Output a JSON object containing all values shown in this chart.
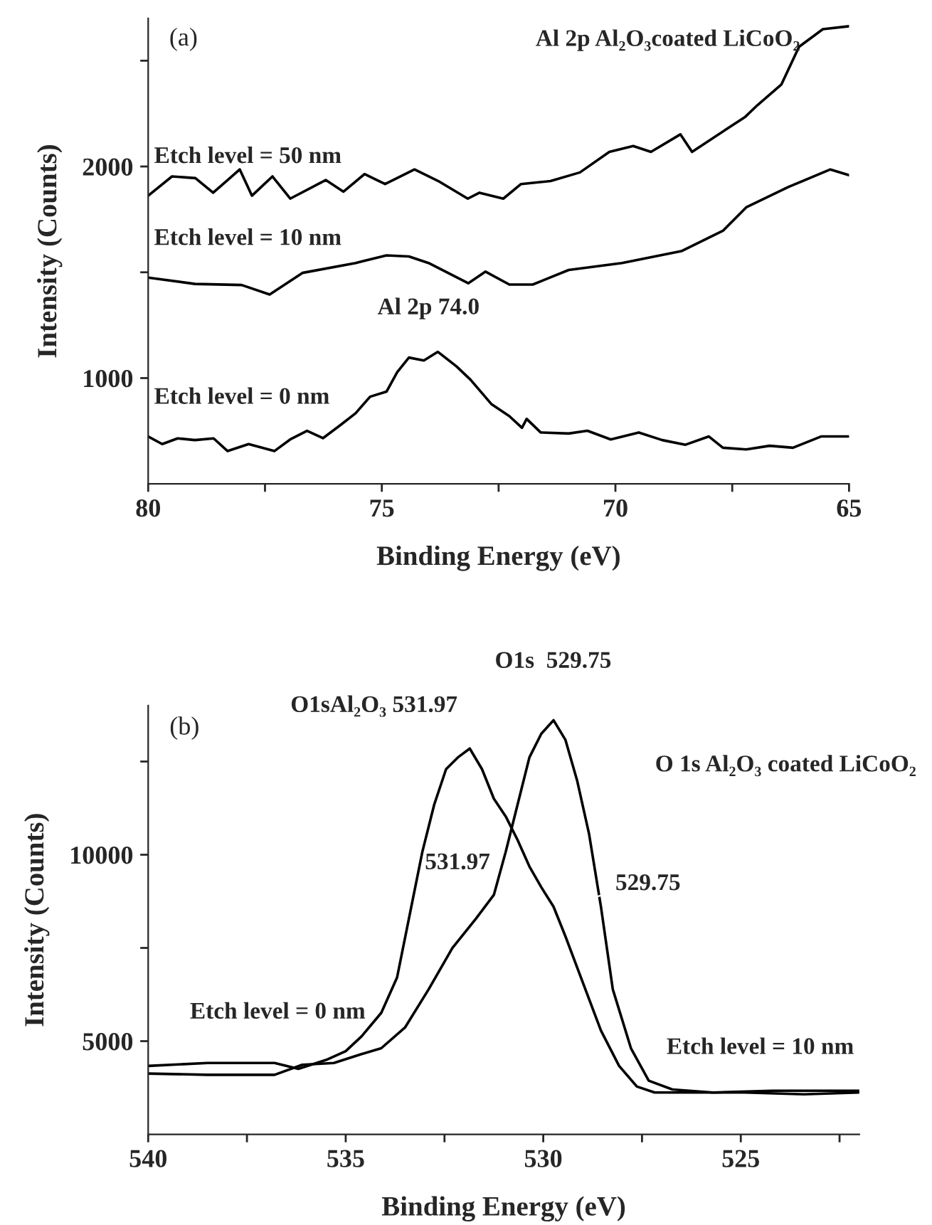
{
  "chart_data": [
    {
      "type": "line",
      "title": "Al 2p Al₂O₃coated LiCoO₂",
      "xlabel": "Binding Energy (eV)",
      "ylabel": "Intensity (Counts)",
      "xlim": [
        80,
        65
      ],
      "ylim": [
        500,
        2700
      ],
      "xticks": [
        80,
        {
          "value": 77.5,
          "label": null
        },
        75,
        {
          "value": 72.5,
          "label": null
        },
        70,
        {
          "value": 67.5,
          "label": null
        },
        65
      ],
      "yticks": [
        1000,
        {
          "value": 1500,
          "label": null
        },
        2000,
        {
          "value": 2500,
          "label": null
        }
      ],
      "annotations": [
        "(a)",
        {
          "text": "Al 2p 74.0",
          "x": 74.0,
          "y": 1110
        }
      ],
      "series": [
        {
          "name": "Etch level = 50 nm",
          "color": "#000000",
          "x": [
            80,
            79.49,
            78.99,
            78.61,
            78.04,
            77.78,
            77.34,
            76.96,
            76.2,
            75.82,
            75.37,
            74.93,
            74.3,
            73.79,
            73.16,
            72.91,
            72.4,
            72.02,
            71.39,
            70.76,
            70.13,
            69.62,
            69.24,
            68.61,
            68.36,
            67.6,
            67.22,
            66.96,
            66.45,
            66.07,
            65.56,
            65.0
          ],
          "values": [
            1862,
            1953,
            1945,
            1876,
            1986,
            1862,
            1953,
            1848,
            1936,
            1881,
            1964,
            1917,
            1986,
            1931,
            1848,
            1876,
            1848,
            1917,
            1931,
            1972,
            2069,
            2097,
            2069,
            2152,
            2069,
            2180,
            2235,
            2290,
            2387,
            2566,
            2649,
            2663
          ]
        },
        {
          "name": "Etch level = 10 nm",
          "color": "#000000",
          "x": [
            80,
            79.0,
            78.0,
            77.4,
            76.7,
            75.56,
            74.9,
            74.42,
            74.0,
            73.15,
            72.78,
            72.27,
            71.77,
            71.0,
            69.86,
            68.59,
            67.7,
            67.2,
            66.3,
            65.4,
            65.0
          ],
          "values": [
            1475,
            1445,
            1440,
            1395,
            1497,
            1544,
            1580,
            1575,
            1544,
            1448,
            1503,
            1442,
            1442,
            1511,
            1544,
            1600,
            1696,
            1807,
            1903,
            1986,
            1959
          ]
        },
        {
          "name": "Etch level = 0 nm",
          "color": "#000000",
          "x": [
            80,
            79.7,
            79.37,
            79.0,
            78.6,
            78.3,
            77.85,
            77.3,
            76.96,
            76.6,
            76.26,
            75.88,
            75.56,
            75.25,
            74.9,
            74.67,
            74.42,
            74.1,
            73.8,
            73.4,
            73.1,
            72.65,
            72.27,
            72.0,
            71.9,
            71.6,
            71.0,
            70.6,
            70.1,
            69.5,
            69.0,
            68.5,
            68.0,
            67.7,
            67.2,
            66.7,
            66.2,
            65.6,
            65.0
          ],
          "values": [
            724,
            688,
            715,
            707,
            715,
            655,
            688,
            655,
            710,
            751,
            716,
            779,
            834,
            912,
            936,
            1028,
            1097,
            1083,
            1124,
            1055,
            992,
            876,
            820,
            765,
            807,
            743,
            738,
            751,
            710,
            743,
            707,
            685,
            724,
            671,
            663,
            680,
            671,
            724,
            724
          ]
        }
      ]
    },
    {
      "type": "line",
      "title": "O 1s Al₂O₃ coated LiCoO₂",
      "xlabel": "Binding Energy (eV)",
      "ylabel": "Intensity (Counts)",
      "xlim": [
        540,
        522
      ],
      "ylim": [
        2500,
        14000
      ],
      "xticks": [
        540,
        {
          "value": 537.5,
          "label": null
        },
        535,
        {
          "value": 532.5,
          "label": null
        },
        530,
        {
          "value": 527.5,
          "label": null
        },
        525,
        {
          "value": 522.5,
          "label": null
        }
      ],
      "yticks": [
        5000,
        {
          "value": 7500,
          "label": null
        },
        10000,
        {
          "value": 12500,
          "label": null
        }
      ],
      "annotations": [
        "(b)",
        {
          "text": "O1sAl₂O₃ 531.97",
          "x": 531.97,
          "y": 12848
        },
        {
          "text": "O1s  529.75",
          "x": 529.75,
          "y": 13608
        },
        {
          "text": "531.97",
          "x": 531.97,
          "y": 8100
        },
        {
          "text": "529.75",
          "x": 529.75,
          "y": 8600
        }
      ],
      "series": [
        {
          "name": "Etch level = 0 nm",
          "color": "#000000",
          "x": [
            540,
            538.5,
            536.8,
            536.2,
            535.5,
            535.0,
            534.6,
            534.1,
            533.7,
            533.06,
            532.76,
            532.46,
            532.16,
            531.86,
            531.55,
            531.25,
            530.95,
            530.65,
            530.35,
            530.05,
            529.74,
            529.44,
            528.99,
            528.54,
            528.08,
            527.63,
            527.18,
            526.4,
            524.9,
            523.4,
            522.0
          ],
          "values": [
            4335,
            4415,
            4415,
            4256,
            4494,
            4731,
            5127,
            5759,
            6709,
            10079,
            11345,
            12294,
            12611,
            12848,
            12294,
            11503,
            11028,
            10396,
            9684,
            9130,
            8608,
            7816,
            6551,
            5285,
            4335,
            3782,
            3623,
            3623,
            3623,
            3576,
            3623
          ]
        },
        {
          "name": "Etch level = 10 nm",
          "color": "#000000",
          "x": [
            540,
            538.5,
            536.8,
            536.1,
            535.3,
            534.6,
            534.1,
            533.5,
            532.9,
            532.3,
            531.7,
            531.25,
            530.95,
            530.65,
            530.35,
            530.05,
            529.74,
            529.44,
            529.14,
            528.84,
            528.54,
            528.24,
            527.78,
            527.33,
            526.73,
            525.7,
            524.2,
            522.0
          ],
          "values": [
            4130,
            4098,
            4098,
            4367,
            4415,
            4652,
            4810,
            5364,
            6392,
            7500,
            8291,
            8924,
            10079,
            11345,
            12611,
            13244,
            13608,
            13085,
            11978,
            10554,
            8608,
            6392,
            4810,
            3940,
            3703,
            3623,
            3671,
            3671
          ]
        }
      ]
    }
  ]
}
